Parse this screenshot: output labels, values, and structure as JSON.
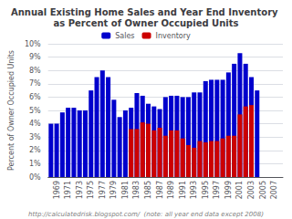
{
  "chart_data": {
    "type": "bar",
    "title": "Annual Existing Home Sales and Year End Inventory as Percent of Owner Occupied Units",
    "y_label": "Percent of Owner Occupied Units",
    "annotations": [
      "http://calculatedrisk.blogspot.com/  (note: all year end data except 2008)"
    ],
    "categories": [
      null,
      "1969",
      null,
      "1971",
      null,
      "1973",
      null,
      "1975",
      null,
      "1977",
      null,
      "1979",
      null,
      "1981",
      null,
      "1983",
      null,
      "1985",
      null,
      "1987",
      null,
      "1989",
      null,
      "1991",
      null,
      "1993",
      null,
      "1995",
      null,
      "1997",
      null,
      "1999",
      null,
      "2001",
      null,
      "2003",
      null,
      "2005",
      null,
      "2007",
      null
    ],
    "series": [
      {
        "name": "Sales",
        "color": "#0000cc",
        "values": [
          4.0,
          4.0,
          4.85,
          5.2,
          5.2,
          5.0,
          5.0,
          6.5,
          7.5,
          8.0,
          7.5,
          5.8,
          4.5,
          5.0,
          5.2,
          6.3,
          6.1,
          5.5,
          5.3,
          5.1,
          6.0,
          6.1,
          6.1,
          6.0,
          6.0,
          6.35,
          6.35,
          7.2,
          7.3,
          7.3,
          7.3,
          7.85,
          8.5,
          9.3,
          8.5,
          7.5,
          6.5,
          0,
          0,
          0,
          0
        ]
      },
      {
        "name": "Inventory",
        "color": "#cc0000",
        "values": [
          0,
          0,
          0,
          0,
          0,
          0,
          0,
          0,
          0,
          0,
          0,
          0,
          0,
          0,
          3.6,
          3.6,
          4.1,
          4.0,
          3.5,
          3.7,
          3.1,
          3.5,
          3.5,
          2.9,
          2.4,
          2.2,
          2.7,
          2.6,
          2.7,
          2.7,
          2.9,
          3.1,
          3.1,
          4.7,
          5.3,
          5.4,
          0,
          0,
          0,
          0,
          0
        ]
      }
    ],
    "ylim": [
      0,
      10
    ],
    "yticks": [
      {
        "value": 0,
        "label": "0%"
      },
      {
        "value": 1,
        "label": "1%"
      },
      {
        "value": 2,
        "label": "2%"
      },
      {
        "value": 3,
        "label": "3%"
      },
      {
        "value": 4,
        "label": "4%"
      },
      {
        "value": 5,
        "label": "5%"
      },
      {
        "value": 6,
        "label": "6%"
      },
      {
        "value": 7,
        "label": "7%"
      },
      {
        "value": 8,
        "label": "8%"
      },
      {
        "value": 9,
        "label": "9%"
      },
      {
        "value": 10,
        "label": "10%"
      }
    ],
    "grid": true,
    "legend": "top"
  }
}
